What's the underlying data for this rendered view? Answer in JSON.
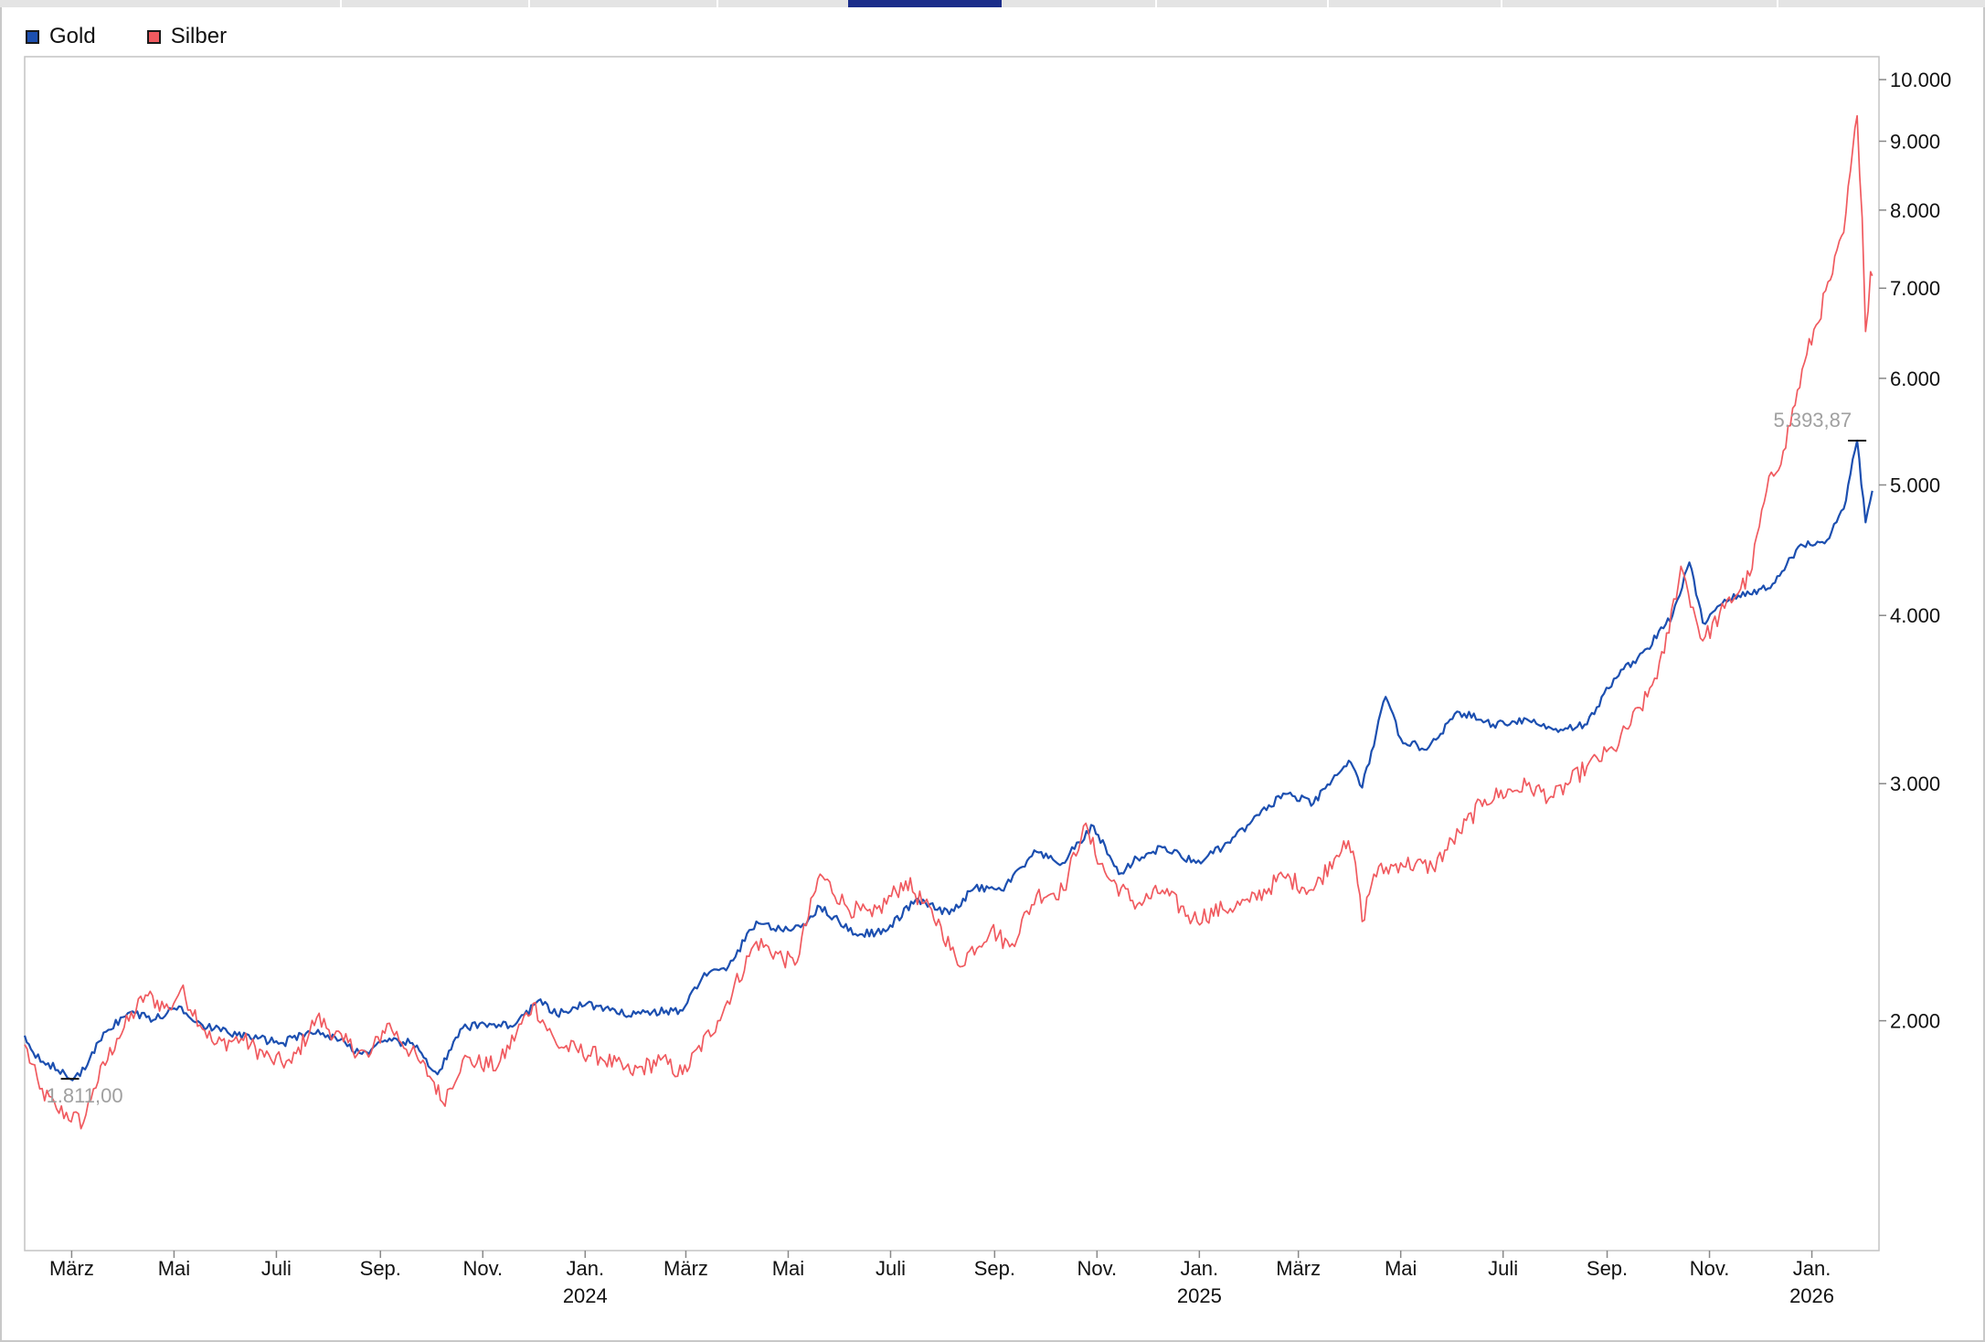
{
  "chart_data": {
    "type": "line",
    "y_scale": "log",
    "ylim": [
      1350,
      10400
    ],
    "y_ticks": [
      {
        "value": 2000,
        "label": "2.000"
      },
      {
        "value": 3000,
        "label": "3.000"
      },
      {
        "value": 4000,
        "label": "4.000"
      },
      {
        "value": 5000,
        "label": "5.000"
      },
      {
        "value": 6000,
        "label": "6.000"
      },
      {
        "value": 7000,
        "label": "7.000"
      },
      {
        "value": 8000,
        "label": "8.000"
      },
      {
        "value": 9000,
        "label": "9.000"
      },
      {
        "value": 10000,
        "label": "10.000"
      }
    ],
    "x_range": [
      "2023-02-01",
      "2026-02-10"
    ],
    "x_ticks": [
      {
        "date": "2023-03-01",
        "label": "März",
        "year": ""
      },
      {
        "date": "2023-05-01",
        "label": "Mai",
        "year": ""
      },
      {
        "date": "2023-07-01",
        "label": "Juli",
        "year": ""
      },
      {
        "date": "2023-09-01",
        "label": "Sep.",
        "year": ""
      },
      {
        "date": "2023-11-01",
        "label": "Nov.",
        "year": ""
      },
      {
        "date": "2024-01-01",
        "label": "Jan.",
        "year": "2024"
      },
      {
        "date": "2024-03-01",
        "label": "März",
        "year": ""
      },
      {
        "date": "2024-05-01",
        "label": "Mai",
        "year": ""
      },
      {
        "date": "2024-07-01",
        "label": "Juli",
        "year": ""
      },
      {
        "date": "2024-09-01",
        "label": "Sep.",
        "year": ""
      },
      {
        "date": "2024-11-01",
        "label": "Nov.",
        "year": ""
      },
      {
        "date": "2025-01-01",
        "label": "Jan.",
        "year": "2025"
      },
      {
        "date": "2025-03-01",
        "label": "März",
        "year": ""
      },
      {
        "date": "2025-05-01",
        "label": "Mai",
        "year": ""
      },
      {
        "date": "2025-07-01",
        "label": "Juli",
        "year": ""
      },
      {
        "date": "2025-09-01",
        "label": "Sep.",
        "year": ""
      },
      {
        "date": "2025-11-01",
        "label": "Nov.",
        "year": ""
      },
      {
        "date": "2026-01-01",
        "label": "Jan.",
        "year": "2026"
      }
    ],
    "grid": false,
    "legend_position": "top-left",
    "series": [
      {
        "name": "Gold",
        "color": "#1c4fb0",
        "points": [
          [
            "2023-02-01",
            1950
          ],
          [
            "2023-02-06",
            1895
          ],
          [
            "2023-02-15",
            1860
          ],
          [
            "2023-02-28",
            1811
          ],
          [
            "2023-03-09",
            1840
          ],
          [
            "2023-03-20",
            1960
          ],
          [
            "2023-04-05",
            2030
          ],
          [
            "2023-04-20",
            2005
          ],
          [
            "2023-05-04",
            2050
          ],
          [
            "2023-05-18",
            1985
          ],
          [
            "2023-06-02",
            1960
          ],
          [
            "2023-06-20",
            1940
          ],
          [
            "2023-07-05",
            1925
          ],
          [
            "2023-07-20",
            1965
          ],
          [
            "2023-08-05",
            1945
          ],
          [
            "2023-08-21",
            1890
          ],
          [
            "2023-09-05",
            1930
          ],
          [
            "2023-09-20",
            1925
          ],
          [
            "2023-10-05",
            1825
          ],
          [
            "2023-10-20",
            1975
          ],
          [
            "2023-11-05",
            1990
          ],
          [
            "2023-11-20",
            1985
          ],
          [
            "2023-12-04",
            2070
          ],
          [
            "2023-12-15",
            2020
          ],
          [
            "2024-01-02",
            2060
          ],
          [
            "2024-01-20",
            2025
          ],
          [
            "2024-02-10",
            2030
          ],
          [
            "2024-02-28",
            2035
          ],
          [
            "2024-03-12",
            2170
          ],
          [
            "2024-03-25",
            2180
          ],
          [
            "2024-04-12",
            2370
          ],
          [
            "2024-04-28",
            2330
          ],
          [
            "2024-05-10",
            2360
          ],
          [
            "2024-05-20",
            2430
          ],
          [
            "2024-06-10",
            2320
          ],
          [
            "2024-06-28",
            2330
          ],
          [
            "2024-07-16",
            2460
          ],
          [
            "2024-08-05",
            2400
          ],
          [
            "2024-08-20",
            2510
          ],
          [
            "2024-09-05",
            2500
          ],
          [
            "2024-09-26",
            2670
          ],
          [
            "2024-10-10",
            2610
          ],
          [
            "2024-10-30",
            2790
          ],
          [
            "2024-11-14",
            2570
          ],
          [
            "2024-11-25",
            2640
          ],
          [
            "2024-12-10",
            2690
          ],
          [
            "2024-12-30",
            2620
          ],
          [
            "2025-01-15",
            2690
          ],
          [
            "2025-01-31",
            2800
          ],
          [
            "2025-02-20",
            2950
          ],
          [
            "2025-03-10",
            2900
          ],
          [
            "2025-03-31",
            3120
          ],
          [
            "2025-04-08",
            2980
          ],
          [
            "2025-04-22",
            3480
          ],
          [
            "2025-05-01",
            3240
          ],
          [
            "2025-05-15",
            3180
          ],
          [
            "2025-06-05",
            3390
          ],
          [
            "2025-06-25",
            3320
          ],
          [
            "2025-07-15",
            3350
          ],
          [
            "2025-07-31",
            3290
          ],
          [
            "2025-08-20",
            3320
          ],
          [
            "2025-09-05",
            3590
          ],
          [
            "2025-09-25",
            3780
          ],
          [
            "2025-10-10",
            4000
          ],
          [
            "2025-10-20",
            4380
          ],
          [
            "2025-10-28",
            3950
          ],
          [
            "2025-11-10",
            4110
          ],
          [
            "2025-11-25",
            4150
          ],
          [
            "2025-12-10",
            4230
          ],
          [
            "2025-12-24",
            4500
          ],
          [
            "2026-01-10",
            4550
          ],
          [
            "2026-01-20",
            4800
          ],
          [
            "2026-01-28",
            5393.87
          ],
          [
            "2026-02-02",
            4690
          ],
          [
            "2026-02-06",
            4950
          ]
        ]
      },
      {
        "name": "Silber",
        "color": "#f05a5f",
        "points": [
          [
            "2023-02-01",
            1920
          ],
          [
            "2023-02-10",
            1780
          ],
          [
            "2023-02-20",
            1720
          ],
          [
            "2023-03-08",
            1680
          ],
          [
            "2023-03-14",
            1780
          ],
          [
            "2023-03-28",
            1940
          ],
          [
            "2023-04-14",
            2090
          ],
          [
            "2023-04-28",
            2040
          ],
          [
            "2023-05-05",
            2110
          ],
          [
            "2023-05-25",
            1920
          ],
          [
            "2023-06-10",
            1940
          ],
          [
            "2023-06-28",
            1870
          ],
          [
            "2023-07-10",
            1860
          ],
          [
            "2023-07-25",
            2010
          ],
          [
            "2023-08-10",
            1930
          ],
          [
            "2023-08-25",
            1880
          ],
          [
            "2023-09-05",
            1990
          ],
          [
            "2023-09-25",
            1860
          ],
          [
            "2023-10-03",
            1800
          ],
          [
            "2023-10-08",
            1740
          ],
          [
            "2023-10-20",
            1870
          ],
          [
            "2023-11-10",
            1850
          ],
          [
            "2023-12-01",
            2060
          ],
          [
            "2023-12-15",
            1920
          ],
          [
            "2024-01-10",
            1880
          ],
          [
            "2024-01-28",
            1830
          ],
          [
            "2024-02-15",
            1870
          ],
          [
            "2024-02-28",
            1825
          ],
          [
            "2024-03-20",
            2000
          ],
          [
            "2024-04-12",
            2290
          ],
          [
            "2024-05-05",
            2200
          ],
          [
            "2024-05-20",
            2570
          ],
          [
            "2024-06-05",
            2430
          ],
          [
            "2024-06-20",
            2390
          ],
          [
            "2024-07-10",
            2540
          ],
          [
            "2024-07-31",
            2350
          ],
          [
            "2024-08-10",
            2200
          ],
          [
            "2024-08-30",
            2340
          ],
          [
            "2024-09-10",
            2270
          ],
          [
            "2024-09-26",
            2480
          ],
          [
            "2024-10-12",
            2500
          ],
          [
            "2024-10-24",
            2790
          ],
          [
            "2024-11-07",
            2560
          ],
          [
            "2024-11-25",
            2440
          ],
          [
            "2024-12-10",
            2500
          ],
          [
            "2024-12-28",
            2380
          ],
          [
            "2025-01-15",
            2420
          ],
          [
            "2025-01-31",
            2450
          ],
          [
            "2025-02-20",
            2560
          ],
          [
            "2025-03-10",
            2500
          ],
          [
            "2025-03-28",
            2720
          ],
          [
            "2025-04-04",
            2620
          ],
          [
            "2025-04-08",
            2370
          ],
          [
            "2025-04-15",
            2570
          ],
          [
            "2025-05-01",
            2620
          ],
          [
            "2025-05-20",
            2600
          ],
          [
            "2025-06-05",
            2760
          ],
          [
            "2025-06-20",
            2920
          ],
          [
            "2025-07-15",
            2990
          ],
          [
            "2025-07-31",
            2930
          ],
          [
            "2025-08-20",
            3090
          ],
          [
            "2025-09-05",
            3180
          ],
          [
            "2025-09-25",
            3480
          ],
          [
            "2025-10-05",
            3750
          ],
          [
            "2025-10-15",
            4350
          ],
          [
            "2025-10-28",
            3830
          ],
          [
            "2025-11-10",
            4050
          ],
          [
            "2025-11-25",
            4280
          ],
          [
            "2025-12-05",
            4950
          ],
          [
            "2025-12-15",
            5300
          ],
          [
            "2025-12-29",
            6250
          ],
          [
            "2026-01-12",
            7100
          ],
          [
            "2026-01-20",
            7700
          ],
          [
            "2026-01-28",
            9400
          ],
          [
            "2026-01-31",
            7900
          ],
          [
            "2026-02-02",
            6500
          ],
          [
            "2026-02-05",
            7200
          ],
          [
            "2026-02-06",
            7150
          ]
        ]
      }
    ],
    "annotations": [
      {
        "label": "1.811,00",
        "series": "Gold",
        "date": "2023-02-28",
        "value": 1811
      },
      {
        "label": "5.393,87",
        "series": "Gold",
        "date": "2026-01-28",
        "value": 5393.87
      }
    ]
  },
  "legend": [
    {
      "name": "Gold",
      "color": "#1c4fb0"
    },
    {
      "name": "Silber",
      "color": "#f05a5f"
    }
  ]
}
